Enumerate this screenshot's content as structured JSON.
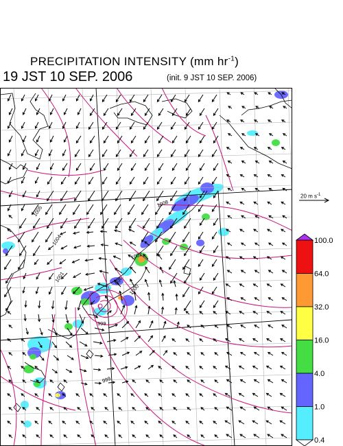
{
  "header": {
    "title": "PRECIPITATION INTENSITY (mm hr",
    "title_sup": "-1",
    "title_end": ")",
    "valid_time": "19 JST 10 SEP. 2006",
    "init_time": "(init. 9 JST 10 SEP. 2006)"
  },
  "reference_vector": {
    "label": "20 m s",
    "label_sup": "-1"
  },
  "colorbar": {
    "levels": [
      "0.4",
      "1.0",
      "4.0",
      "16.0",
      "32.0",
      "64.0",
      "100.0"
    ],
    "colors": [
      "#55eeff",
      "#6464ff",
      "#44dd44",
      "#ffff44",
      "#ff9933",
      "#ee1111",
      "#aa33ee"
    ]
  },
  "pressure_labels": [
    "1008",
    "1005",
    "1004",
    "1002",
    "1001",
    "998",
    "999",
    "1000",
    "999"
  ],
  "colors": {
    "isobar": "#cc1177",
    "coast": "#000000",
    "grid": "#b0b0b0"
  }
}
